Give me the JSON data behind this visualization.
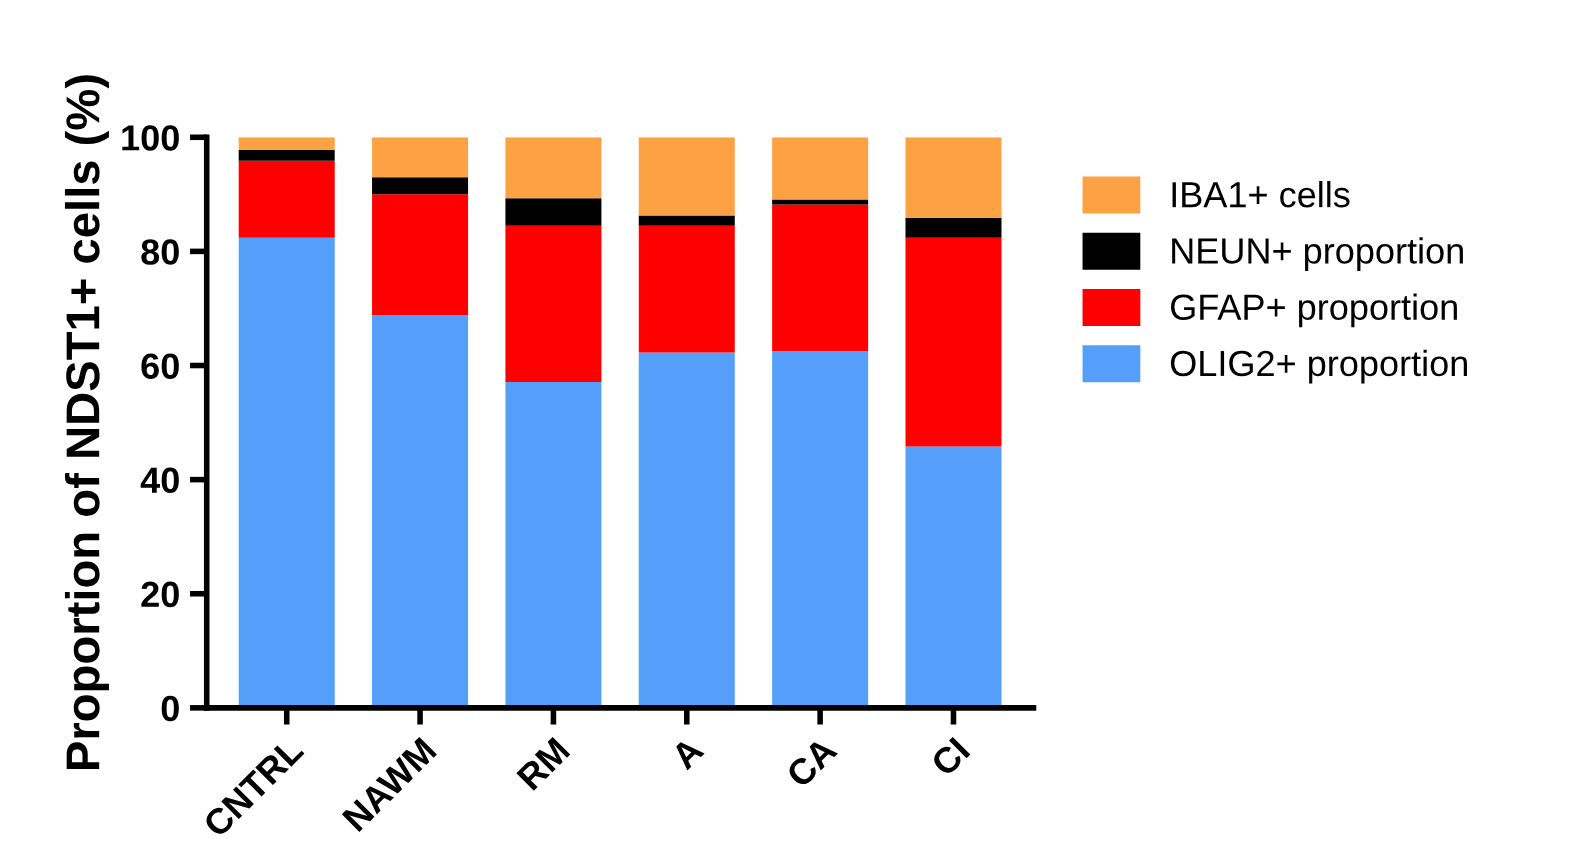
{
  "chart_data": {
    "type": "bar",
    "stacked": true,
    "ylabel": "Proportion of NDST1+ cells (%)",
    "categories": [
      "CNTRL",
      "NAWM",
      "RM",
      "A",
      "CA",
      "CI"
    ],
    "series": [
      {
        "name": "OLIG2+ proportion",
        "color": "#559ffb",
        "values": [
          82.4,
          68.8,
          57.1,
          62.3,
          62.5,
          45.8
        ]
      },
      {
        "name": "GFAP+ proportion",
        "color": "#fe0000",
        "values": [
          13.5,
          21.2,
          27.4,
          22.2,
          25.7,
          36.6
        ]
      },
      {
        "name": "NEUN+ proportion",
        "color": "#000000",
        "values": [
          1.9,
          3.0,
          4.8,
          1.8,
          0.9,
          3.5
        ]
      },
      {
        "name": "IBA1+ cells",
        "color": "#fda244",
        "values": [
          2.2,
          7.0,
          10.7,
          13.7,
          10.9,
          14.1
        ]
      }
    ],
    "ylim": [
      0,
      100
    ],
    "yticks": [
      0,
      20,
      40,
      60,
      80,
      100
    ],
    "grid": false,
    "legend": "right"
  }
}
